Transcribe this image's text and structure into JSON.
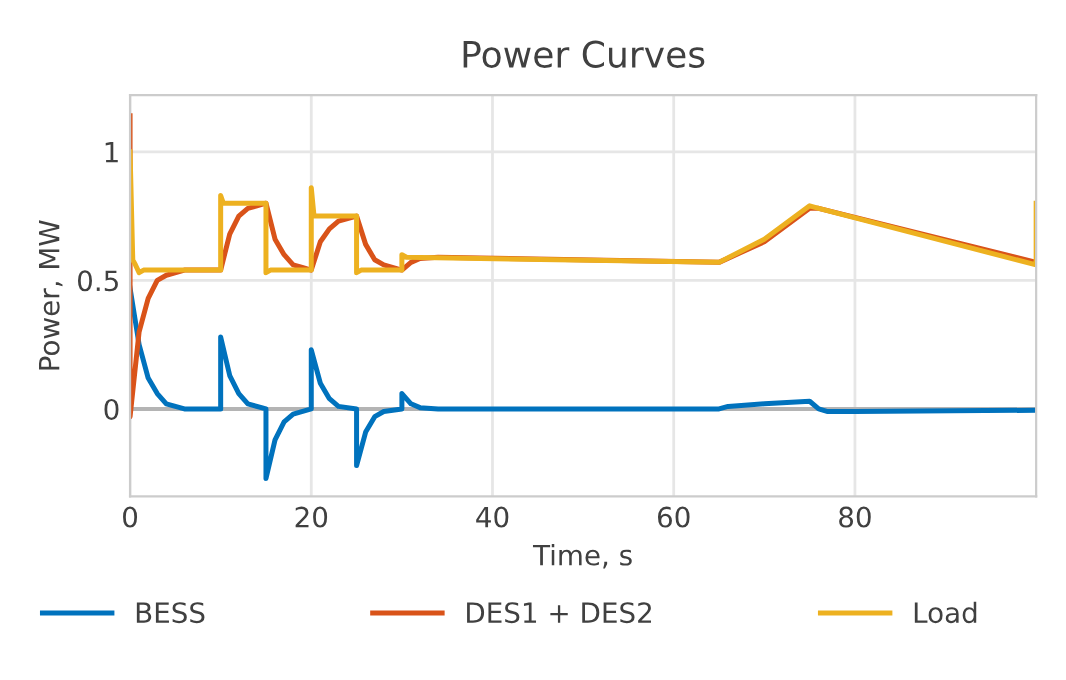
{
  "chart_data": {
    "type": "line",
    "title": "Power Curves",
    "xlabel": "Time, s",
    "ylabel": "Power, MW",
    "xlim": [
      0,
      100
    ],
    "xticks": [
      0,
      20,
      40,
      60,
      80
    ],
    "ylim": [
      -0.34,
      1.22
    ],
    "yticks": [
      0,
      0.5,
      1
    ],
    "grid": true,
    "legend": "bottom",
    "line_style": "solid",
    "ref_lines": [
      {
        "axis": "y",
        "value": 0,
        "color": "#b4b4b4"
      }
    ],
    "series": [
      {
        "name": "BESS",
        "color": "#0072bd",
        "x": [
          0,
          1,
          2,
          3,
          4,
          6,
          10,
          10,
          11,
          12,
          13,
          15,
          15,
          16,
          17,
          18,
          20,
          20,
          21,
          22,
          23,
          25,
          25,
          26,
          27,
          28,
          30,
          30,
          31,
          32,
          34,
          65,
          66,
          70,
          75,
          76,
          77,
          80,
          100
        ],
        "values": [
          0.47,
          0.25,
          0.12,
          0.06,
          0.02,
          0,
          0,
          0.28,
          0.13,
          0.06,
          0.02,
          0,
          -0.27,
          -0.12,
          -0.05,
          -0.02,
          0,
          0.23,
          0.1,
          0.04,
          0.01,
          0,
          -0.22,
          -0.09,
          -0.03,
          -0.01,
          0,
          0.06,
          0.02,
          0.005,
          0,
          0,
          0.01,
          0.02,
          0.03,
          0,
          -0.01,
          -0.01,
          -0.005
        ]
      },
      {
        "name": "DES1 + DES2",
        "color": "#d95319",
        "x": [
          0,
          0,
          1,
          2,
          3,
          4,
          6,
          10,
          11,
          12,
          13,
          14,
          15,
          16,
          17,
          18,
          19,
          20,
          21,
          22,
          23,
          24,
          25,
          26,
          27,
          28,
          30,
          31,
          32,
          34,
          65,
          70,
          75,
          76,
          100
        ],
        "values": [
          1.14,
          -0.03,
          0.3,
          0.43,
          0.5,
          0.52,
          0.54,
          0.54,
          0.68,
          0.75,
          0.78,
          0.79,
          0.8,
          0.66,
          0.6,
          0.56,
          0.55,
          0.54,
          0.65,
          0.7,
          0.73,
          0.74,
          0.75,
          0.64,
          0.58,
          0.56,
          0.54,
          0.57,
          0.585,
          0.59,
          0.57,
          0.65,
          0.78,
          0.78,
          0.57
        ]
      },
      {
        "name": "Load",
        "color": "#edb120",
        "x": [
          0,
          0.3,
          0.6,
          1,
          1.5,
          10,
          10,
          10.3,
          15,
          15,
          15.5,
          20,
          20,
          20.3,
          25,
          25,
          25.5,
          30,
          30,
          30.5,
          65,
          70,
          75,
          76,
          100,
          100
        ],
        "values": [
          1.0,
          0.58,
          0.56,
          0.53,
          0.54,
          0.54,
          0.83,
          0.8,
          0.8,
          0.53,
          0.54,
          0.54,
          0.86,
          0.75,
          0.75,
          0.53,
          0.54,
          0.54,
          0.6,
          0.59,
          0.57,
          0.66,
          0.79,
          0.78,
          0.56,
          0.8
        ]
      }
    ]
  }
}
